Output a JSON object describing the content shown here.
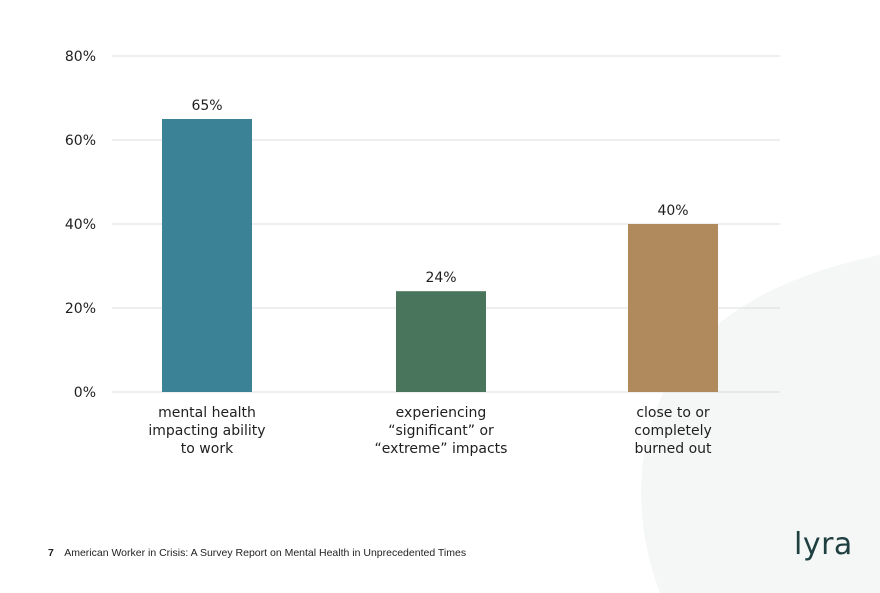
{
  "chart_data": {
    "type": "bar",
    "categories": [
      "mental health impacting ability to work",
      "experiencing “significant” or “extreme” impacts",
      "close to or completely burned out"
    ],
    "category_lines": [
      [
        "mental health",
        "impacting ability",
        "to work"
      ],
      [
        "experiencing",
        "“significant” or",
        "“extreme” impacts"
      ],
      [
        "close to or",
        "completely",
        "burned out"
      ]
    ],
    "values": [
      65,
      24,
      40
    ],
    "value_labels": [
      "65%",
      "24%",
      "40%"
    ],
    "bar_colors": [
      "#3c8297",
      "#48755c",
      "#b0895c"
    ],
    "ylim": [
      0,
      80
    ],
    "yticks": [
      0,
      20,
      40,
      60,
      80
    ],
    "ytick_labels": [
      "0%",
      "20%",
      "40%",
      "60%",
      "80%"
    ],
    "grid": true,
    "title": "",
    "xlabel": "",
    "ylabel": ""
  },
  "footer": {
    "page_number": "7",
    "text": "American Worker in Crisis: A Survey Report on Mental Health in Unprecedented Times"
  },
  "logo": {
    "text": "lyra"
  },
  "colors": {
    "background_shape": "#f4f7f5",
    "grid": "#dddddd",
    "text": "#1f1f1f"
  }
}
